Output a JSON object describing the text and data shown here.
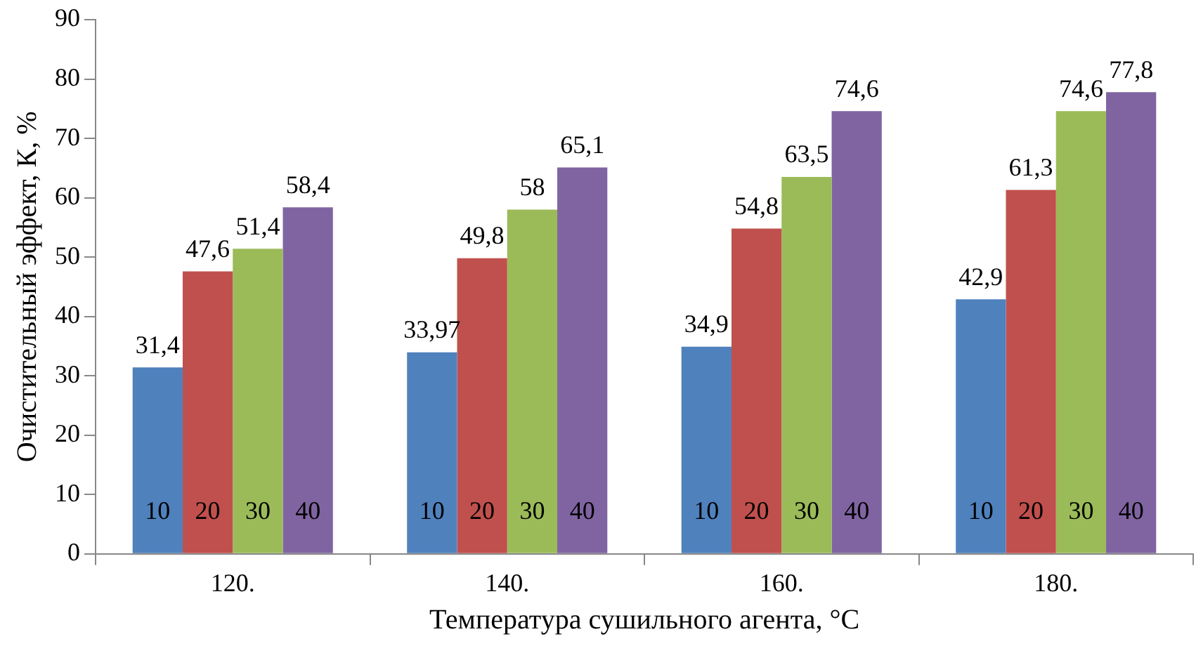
{
  "chart_data": {
    "type": "bar",
    "xlabel": "Температура сушильного агента, °C",
    "ylabel": "Очистительный эффект, К, %",
    "categories": [
      "120.",
      "140.",
      "160.",
      "180."
    ],
    "series": [
      {
        "name": "10",
        "color": "#4f81bd",
        "values": [
          31.4,
          33.97,
          34.9,
          42.9
        ],
        "value_labels": [
          "31,4",
          "33,97",
          "34,9",
          "42,9"
        ]
      },
      {
        "name": "20",
        "color": "#c0504d",
        "values": [
          47.6,
          49.8,
          54.8,
          61.3
        ],
        "value_labels": [
          "47,6",
          "49,8",
          "54,8",
          "61,3"
        ]
      },
      {
        "name": "30",
        "color": "#9bbb59",
        "values": [
          51.4,
          58,
          63.5,
          74.6
        ],
        "value_labels": [
          "51,4",
          "58",
          "63,5",
          "74,6"
        ]
      },
      {
        "name": "40",
        "color": "#8064a2",
        "values": [
          58.4,
          65.1,
          74.6,
          77.8
        ],
        "value_labels": [
          "58,4",
          "65,1",
          "74,6",
          "77,8"
        ]
      }
    ],
    "ylim": [
      0,
      90
    ],
    "yticks": [
      0,
      10,
      20,
      30,
      40,
      50,
      60,
      70,
      80,
      90
    ],
    "grid": false,
    "legend": false
  }
}
